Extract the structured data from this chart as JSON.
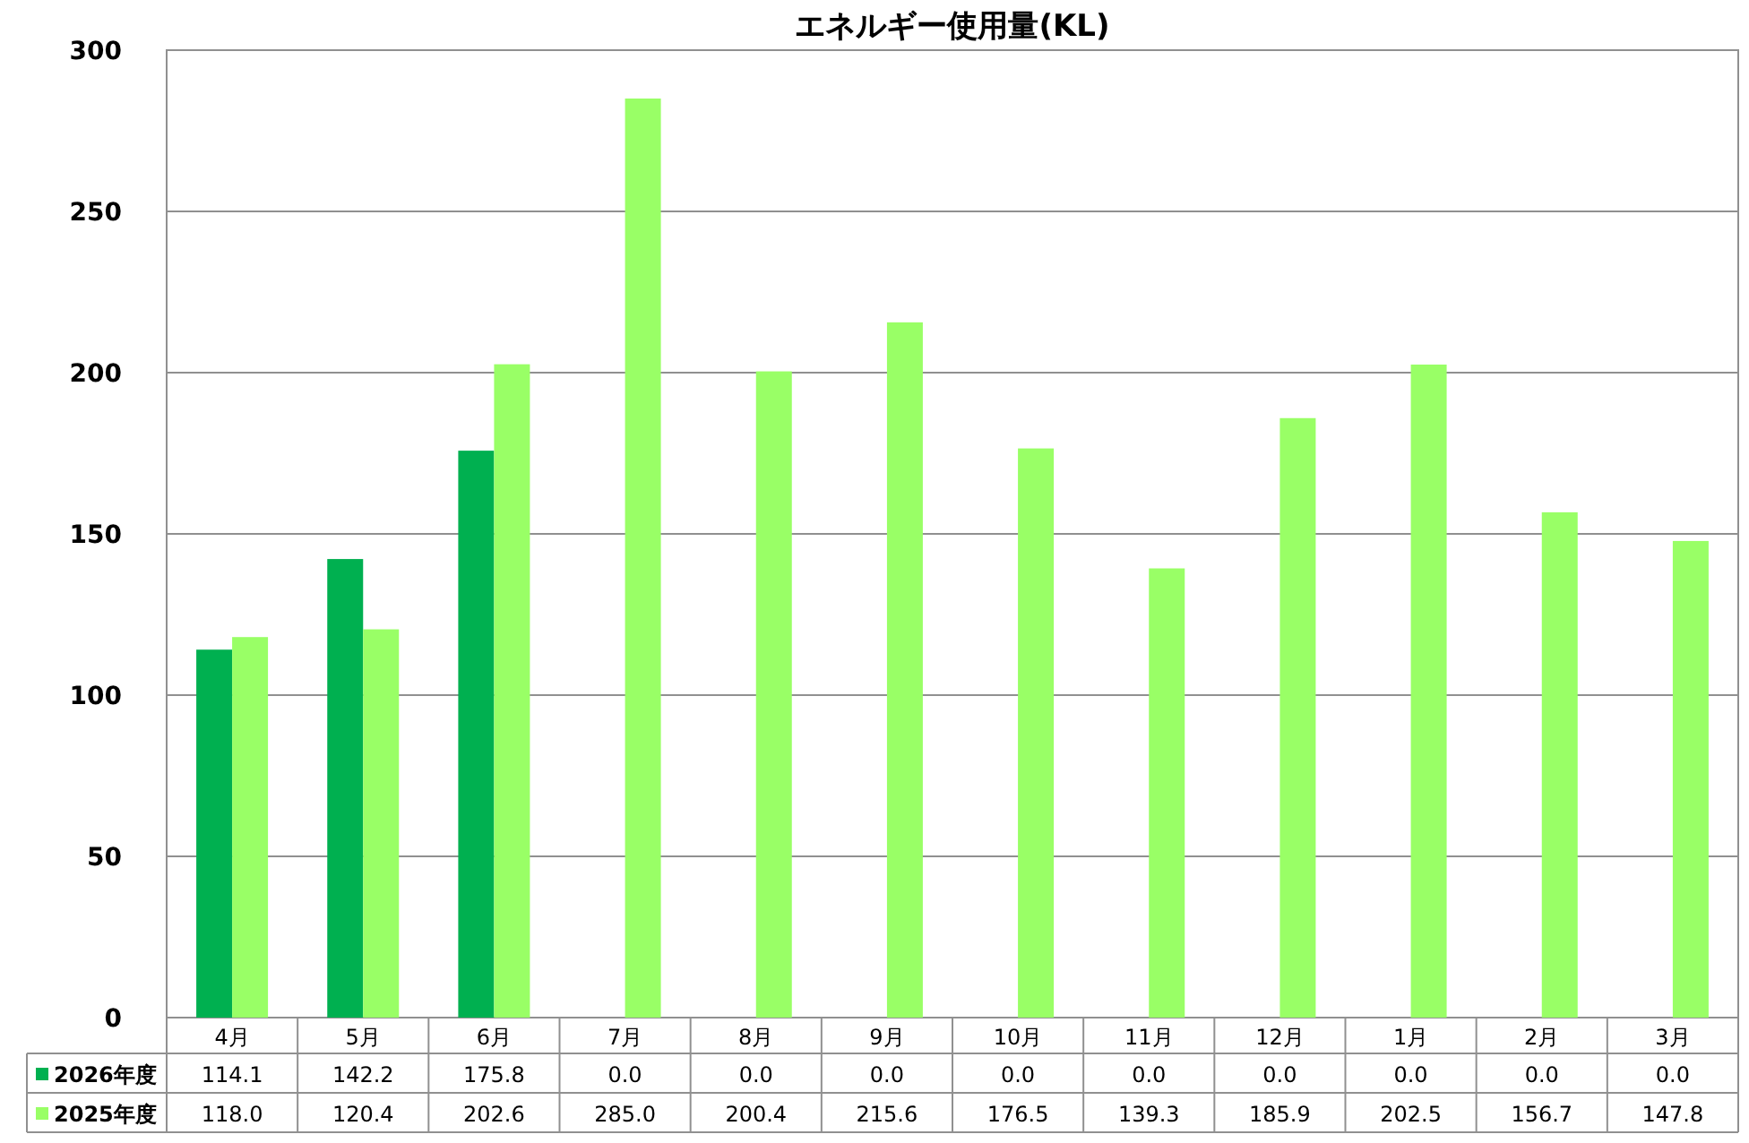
{
  "chart_data": {
    "type": "bar",
    "title": "エネルギー使用量(KL)",
    "categories": [
      "4月",
      "5月",
      "6月",
      "7月",
      "8月",
      "9月",
      "10月",
      "11月",
      "12月",
      "1月",
      "2月",
      "3月"
    ],
    "series": [
      {
        "name": "2026年度",
        "color": "#00b050",
        "values": [
          114.1,
          142.2,
          175.8,
          0.0,
          0.0,
          0.0,
          0.0,
          0.0,
          0.0,
          0.0,
          0.0,
          0.0
        ],
        "value_labels": [
          "114.1",
          "142.2",
          "175.8",
          "0.0",
          "0.0",
          "0.0",
          "0.0",
          "0.0",
          "0.0",
          "0.0",
          "0.0",
          "0.0"
        ]
      },
      {
        "name": "2025年度",
        "color": "#99ff66",
        "values": [
          118.0,
          120.4,
          202.6,
          285.0,
          200.4,
          215.6,
          176.5,
          139.3,
          185.9,
          202.5,
          156.7,
          147.8
        ],
        "value_labels": [
          "118.0",
          "120.4",
          "202.6",
          "285.0",
          "200.4",
          "215.6",
          "176.5",
          "139.3",
          "185.9",
          "202.5",
          "156.7",
          "147.8"
        ]
      }
    ],
    "ylim": [
      0,
      300
    ],
    "yticks": [
      0,
      50,
      100,
      150,
      200,
      250,
      300
    ],
    "grid": "y",
    "legend": "bottom left"
  }
}
